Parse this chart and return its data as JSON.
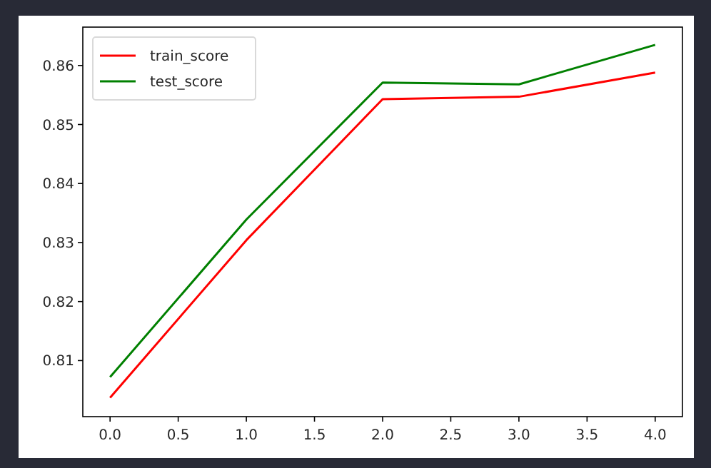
{
  "chart_data": {
    "type": "line",
    "x": [
      0,
      1,
      2,
      3,
      4
    ],
    "series": [
      {
        "name": "train_score",
        "color": "#ff0000",
        "values": [
          0.8037,
          0.8304,
          0.8543,
          0.8547,
          0.8588
        ]
      },
      {
        "name": "test_score",
        "color": "#008000",
        "values": [
          0.8072,
          0.8339,
          0.8571,
          0.8568,
          0.8635
        ]
      }
    ],
    "xlim": [
      -0.2,
      4.2
    ],
    "xticks": [
      {
        "value": 0,
        "label": "0.0"
      },
      {
        "value": 0.5,
        "label": "0.5"
      },
      {
        "value": 1,
        "label": "1.0"
      },
      {
        "value": 1.5,
        "label": "1.5"
      },
      {
        "value": 2,
        "label": "2.0"
      },
      {
        "value": 2.5,
        "label": "2.5"
      },
      {
        "value": 3,
        "label": "3.0"
      },
      {
        "value": 3.5,
        "label": "3.5"
      },
      {
        "value": 4,
        "label": "4.0"
      }
    ],
    "ylim": [
      0.8005,
      0.8665
    ],
    "yticks": [
      0.81,
      0.82,
      0.83,
      0.84,
      0.85,
      0.86
    ],
    "legend": "top left",
    "grid": false,
    "marker": "none",
    "line_style": "solid"
  }
}
